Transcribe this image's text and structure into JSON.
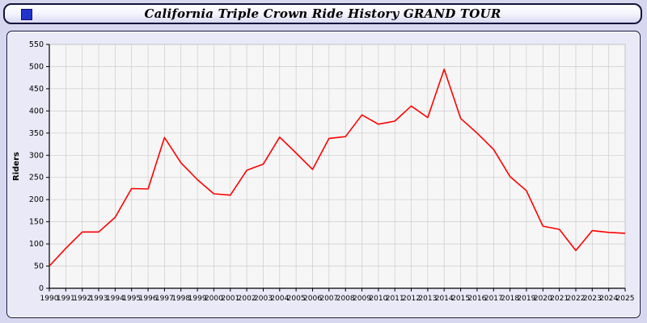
{
  "header": {
    "title": "California Triple Crown Ride History GRAND TOUR"
  },
  "icons": {
    "window_square": "blue-square-icon"
  },
  "colors": {
    "line": "#ff0000",
    "page_background": "#d7d7ef",
    "panel_background": "#e9e9f7",
    "plot_background": "#f6f6f6",
    "grid": "#cccccc",
    "border": "#14143c"
  },
  "chart_data": {
    "type": "line",
    "title": "California Triple Crown Ride History GRAND TOUR",
    "xlabel": "",
    "ylabel": "Riders",
    "ylim": [
      0,
      550
    ],
    "ytick_step": 50,
    "grid": true,
    "legend": "none",
    "line_color": "#ff0000",
    "x": [
      1990,
      1991,
      1992,
      1993,
      1994,
      1995,
      1996,
      1997,
      1998,
      1999,
      2000,
      2001,
      2002,
      2003,
      2004,
      2005,
      2006,
      2007,
      2008,
      2009,
      2010,
      2011,
      2012,
      2013,
      2014,
      2015,
      2016,
      2017,
      2018,
      2019,
      2020,
      2021,
      2022,
      2023,
      2024,
      2025
    ],
    "series": [
      {
        "name": "Riders",
        "values": [
          50,
          90,
          127,
          127,
          160,
          225,
          224,
          340,
          283,
          245,
          213,
          210,
          266,
          280,
          341,
          305,
          268,
          338,
          342,
          391,
          370,
          377,
          411,
          385,
          494,
          383,
          350,
          313,
          252,
          220,
          140,
          133,
          85,
          130,
          126,
          124
        ]
      }
    ]
  }
}
